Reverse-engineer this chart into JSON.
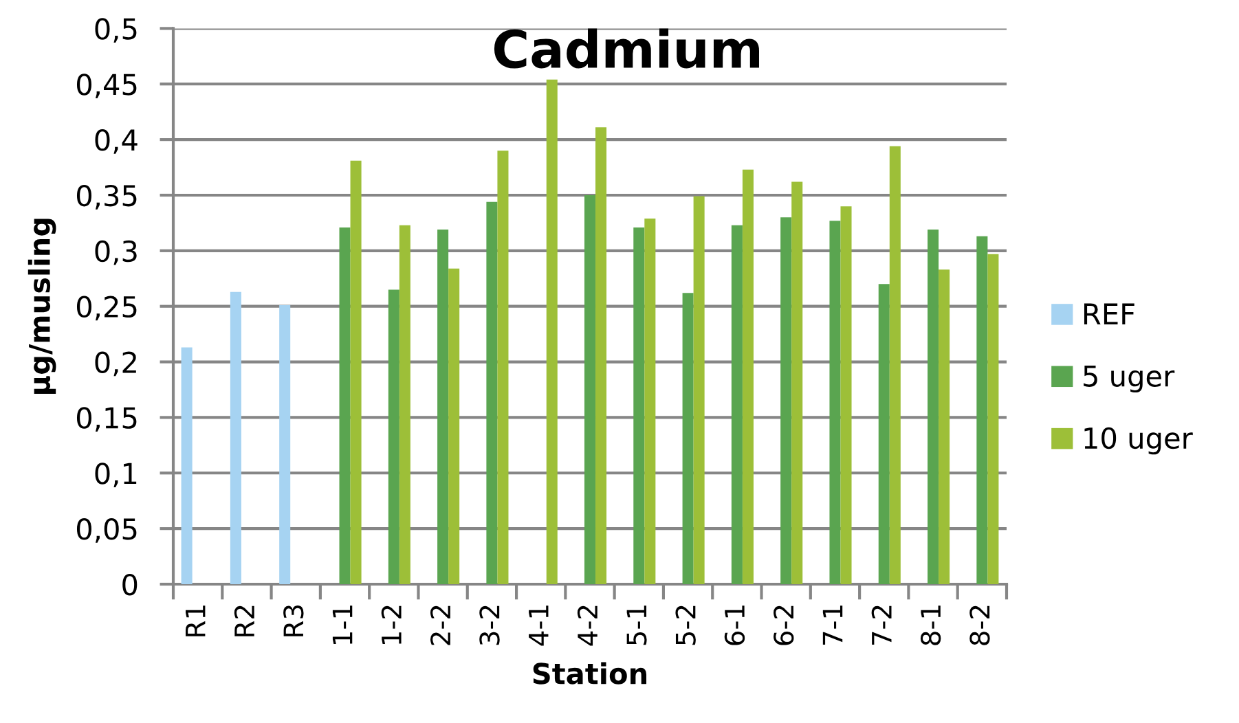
{
  "chart_data": {
    "type": "bar",
    "title": "Cadmium",
    "xlabel": "Station",
    "ylabel": "μg/musling",
    "categories": [
      "R1",
      "R2",
      "R3",
      "1-1",
      "1-2",
      "2-2",
      "3-2",
      "4-1",
      "4-2",
      "5-1",
      "5-2",
      "6-1",
      "6-2",
      "7-1",
      "7-2",
      "8-1",
      "8-2"
    ],
    "series": [
      {
        "name": "REF",
        "color": "#a6d3f2",
        "values": [
          0.213,
          0.263,
          0.251,
          null,
          null,
          null,
          null,
          null,
          null,
          null,
          null,
          null,
          null,
          null,
          null,
          null,
          null
        ]
      },
      {
        "name": "5 uger",
        "color": "#5aa550",
        "values": [
          null,
          null,
          null,
          0.321,
          0.265,
          0.319,
          0.344,
          null,
          0.35,
          0.321,
          0.262,
          0.323,
          0.33,
          0.327,
          0.27,
          0.319,
          0.313
        ]
      },
      {
        "name": "10 uger",
        "color": "#9dbf38",
        "values": [
          null,
          null,
          null,
          0.381,
          0.323,
          0.284,
          0.39,
          0.454,
          0.411,
          0.329,
          0.349,
          0.373,
          0.362,
          0.34,
          0.394,
          0.283,
          0.297
        ]
      }
    ],
    "ylim": [
      0,
      0.5
    ],
    "yticks": [
      0,
      {
        "value": 0.05,
        "label": "0,05"
      },
      {
        "value": 0.1,
        "label": "0,1"
      },
      {
        "value": 0.15,
        "label": "0,15"
      },
      {
        "value": 0.2,
        "label": "0,2"
      },
      {
        "value": 0.25,
        "label": "0,25"
      },
      {
        "value": 0.3,
        "label": "0,3"
      },
      {
        "value": 0.35,
        "label": "0,35"
      },
      {
        "value": 0.4,
        "label": "0,4"
      },
      {
        "value": 0.45,
        "label": "0,45"
      },
      {
        "value": 0.5,
        "label": "0,5"
      }
    ],
    "grid": "y",
    "legend": "right"
  }
}
